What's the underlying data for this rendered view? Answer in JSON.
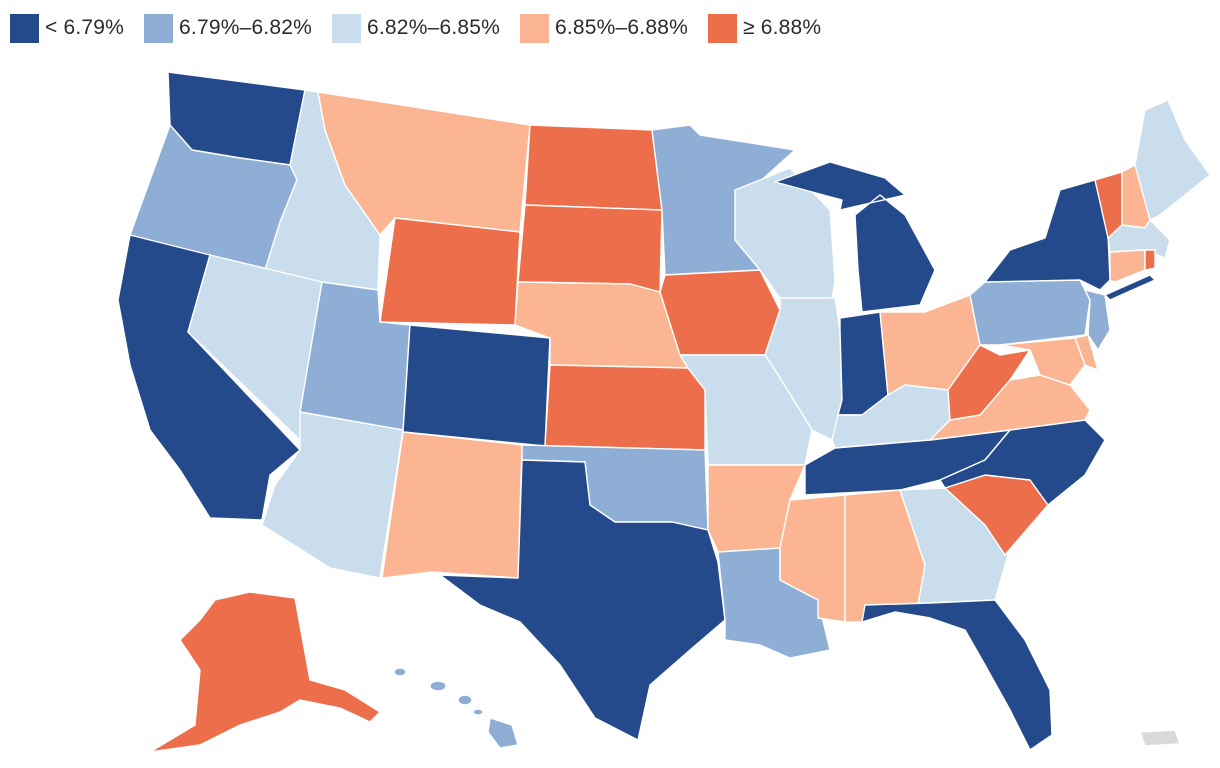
{
  "legend": [
    {
      "label": "< 6.79%",
      "color": "#244a8c",
      "key": "c1"
    },
    {
      "label": "6.79%–6.82%",
      "color": "#8eaed5",
      "key": "c2"
    },
    {
      "label": "6.82%–6.85%",
      "color": "#c9dded",
      "key": "c3"
    },
    {
      "label": "6.85%–6.88%",
      "color": "#fbb592",
      "key": "c4"
    },
    {
      "label": "≥ 6.88%",
      "color": "#ec6e4a",
      "key": "c5"
    }
  ],
  "no_data_color": "#d9d9d9",
  "states": [
    {
      "abbr": "WA",
      "bin": "c1"
    },
    {
      "abbr": "OR",
      "bin": "c2"
    },
    {
      "abbr": "CA",
      "bin": "c1"
    },
    {
      "abbr": "ID",
      "bin": "c3"
    },
    {
      "abbr": "NV",
      "bin": "c3"
    },
    {
      "abbr": "MT",
      "bin": "c4"
    },
    {
      "abbr": "WY",
      "bin": "c5"
    },
    {
      "abbr": "UT",
      "bin": "c2"
    },
    {
      "abbr": "AZ",
      "bin": "c3"
    },
    {
      "abbr": "CO",
      "bin": "c1"
    },
    {
      "abbr": "NM",
      "bin": "c4"
    },
    {
      "abbr": "ND",
      "bin": "c5"
    },
    {
      "abbr": "SD",
      "bin": "c5"
    },
    {
      "abbr": "NE",
      "bin": "c4"
    },
    {
      "abbr": "KS",
      "bin": "c5"
    },
    {
      "abbr": "OK",
      "bin": "c2"
    },
    {
      "abbr": "TX",
      "bin": "c1"
    },
    {
      "abbr": "MN",
      "bin": "c2"
    },
    {
      "abbr": "IA",
      "bin": "c5"
    },
    {
      "abbr": "MO",
      "bin": "c3"
    },
    {
      "abbr": "AR",
      "bin": "c4"
    },
    {
      "abbr": "LA",
      "bin": "c2"
    },
    {
      "abbr": "WI",
      "bin": "c3"
    },
    {
      "abbr": "IL",
      "bin": "c3"
    },
    {
      "abbr": "MI",
      "bin": "c1"
    },
    {
      "abbr": "IN",
      "bin": "c1"
    },
    {
      "abbr": "OH",
      "bin": "c4"
    },
    {
      "abbr": "KY",
      "bin": "c3"
    },
    {
      "abbr": "TN",
      "bin": "c1"
    },
    {
      "abbr": "MS",
      "bin": "c4"
    },
    {
      "abbr": "AL",
      "bin": "c4"
    },
    {
      "abbr": "GA",
      "bin": "c3"
    },
    {
      "abbr": "FL",
      "bin": "c1"
    },
    {
      "abbr": "SC",
      "bin": "c5"
    },
    {
      "abbr": "NC",
      "bin": "c1"
    },
    {
      "abbr": "VA",
      "bin": "c4"
    },
    {
      "abbr": "WV",
      "bin": "c5"
    },
    {
      "abbr": "PA",
      "bin": "c2"
    },
    {
      "abbr": "NY",
      "bin": "c1"
    },
    {
      "abbr": "NJ",
      "bin": "c2"
    },
    {
      "abbr": "DE",
      "bin": "c4"
    },
    {
      "abbr": "MD",
      "bin": "c4"
    },
    {
      "abbr": "VT",
      "bin": "c5"
    },
    {
      "abbr": "NH",
      "bin": "c4"
    },
    {
      "abbr": "ME",
      "bin": "c3"
    },
    {
      "abbr": "MA",
      "bin": "c3"
    },
    {
      "abbr": "CT",
      "bin": "c4"
    },
    {
      "abbr": "RI",
      "bin": "c5"
    },
    {
      "abbr": "AK",
      "bin": "c5"
    },
    {
      "abbr": "HI",
      "bin": "c2"
    },
    {
      "abbr": "PR",
      "bin": "none"
    }
  ]
}
